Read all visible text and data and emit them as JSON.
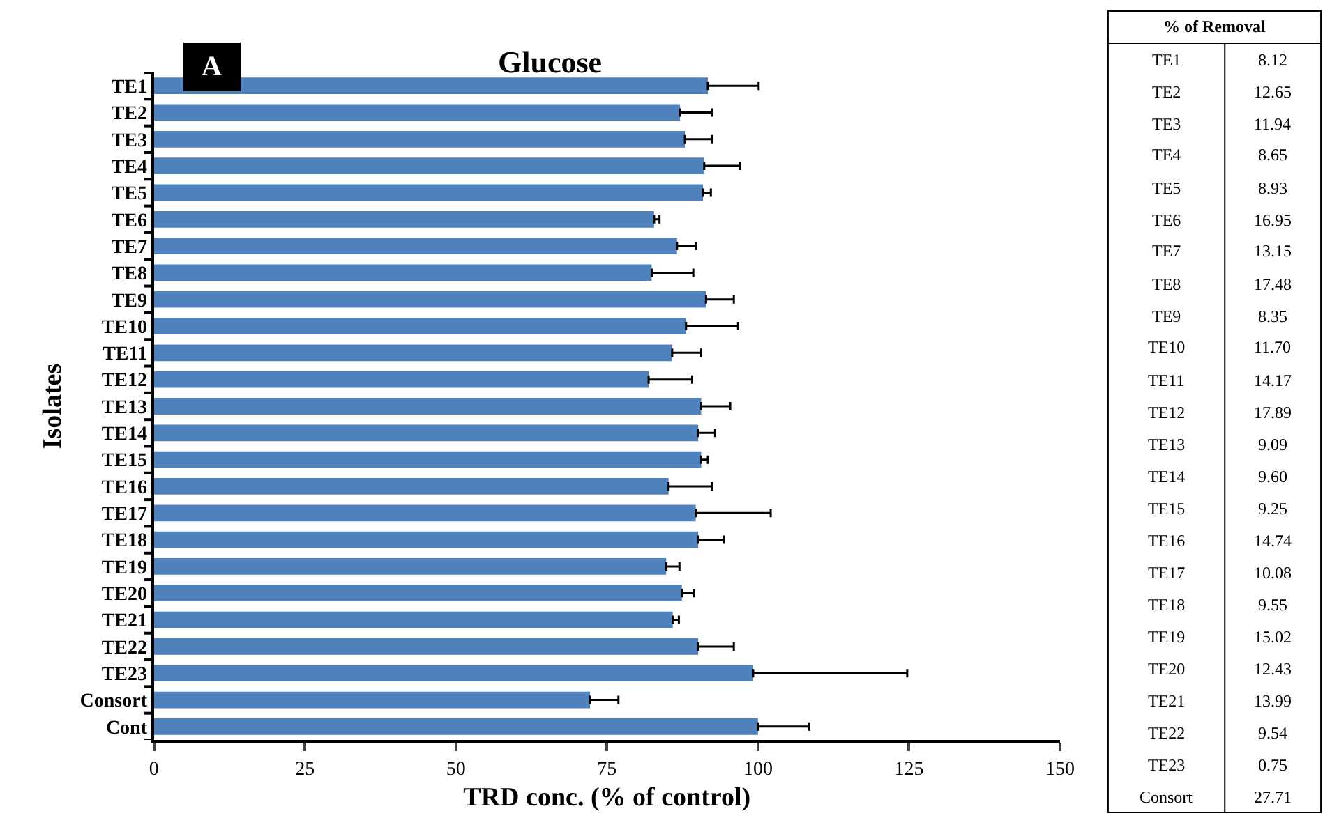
{
  "chart_data": [
    {
      "type": "bar",
      "orientation": "horizontal",
      "title": "Glucose",
      "xlabel": "TRD conc. (% of control)",
      "ylabel": "Isolates",
      "annotations": [
        "A"
      ],
      "categories": [
        "TE1",
        "TE2",
        "TE3",
        "TE4",
        "TE5",
        "TE6",
        "TE7",
        "TE8",
        "TE9",
        "TE10",
        "TE11",
        "TE12",
        "TE13",
        "TE14",
        "TE15",
        "TE16",
        "TE17",
        "TE18",
        "TE19",
        "TE20",
        "TE21",
        "TE22",
        "TE23",
        "Consort",
        "Cont"
      ],
      "values": [
        91.7,
        87.1,
        87.9,
        91.1,
        90.9,
        82.8,
        86.6,
        82.4,
        91.4,
        88.1,
        85.8,
        81.9,
        90.6,
        90.1,
        90.6,
        85.2,
        89.7,
        90.1,
        84.8,
        87.4,
        85.9,
        90.1,
        99.2,
        72.2,
        100
      ],
      "errors": [
        [
          91.7,
          100.1
        ],
        [
          87.1,
          92.4
        ],
        [
          87.9,
          92.4
        ],
        [
          91.1,
          97.0
        ],
        [
          90.9,
          92.2
        ],
        [
          82.8,
          83.7
        ],
        [
          86.6,
          89.8
        ],
        [
          82.4,
          89.3
        ],
        [
          91.4,
          96.0
        ],
        [
          88.1,
          96.7
        ],
        [
          85.8,
          90.6
        ],
        [
          81.9,
          89.1
        ],
        [
          90.6,
          95.4
        ],
        [
          90.1,
          92.9
        ],
        [
          90.6,
          91.7
        ],
        [
          85.2,
          92.4
        ],
        [
          89.7,
          102.1
        ],
        [
          90.1,
          94.4
        ],
        [
          84.8,
          87.0
        ],
        [
          87.4,
          89.4
        ],
        [
          85.9,
          86.9
        ],
        [
          90.1,
          96.0
        ],
        [
          99.2,
          124.7
        ],
        [
          72.2,
          76.9
        ],
        [
          100,
          108.5
        ]
      ],
      "color": "#4f81bd",
      "xlim": [
        0,
        150
      ],
      "xticks": [
        0,
        25,
        50,
        75,
        100,
        125,
        150
      ]
    },
    {
      "type": "other",
      "title": "% of Removal",
      "categories": [
        "TE1",
        "TE2",
        "TE3",
        "TE4",
        "TE5",
        "TE6",
        "TE7",
        "TE8",
        "TE9",
        "TE10",
        "TE11",
        "TE12",
        "TE13",
        "TE14",
        "TE15",
        "TE16",
        "TE17",
        "TE18",
        "TE19",
        "TE20",
        "TE21",
        "TE22",
        "TE23",
        "Consort"
      ],
      "values": [
        8.12,
        12.65,
        11.94,
        8.65,
        8.93,
        16.95,
        13.15,
        17.48,
        8.35,
        11.7,
        14.17,
        17.89,
        9.09,
        9.6,
        9.25,
        14.74,
        10.08,
        9.55,
        15.02,
        12.43,
        13.99,
        9.54,
        0.75,
        27.71
      ],
      "value_labels": [
        "8.12",
        "12.65",
        "11.94",
        "8.65",
        "8.93",
        "16.95",
        "13.15",
        "17.48",
        "8.35",
        "11.70",
        "14.17",
        "17.89",
        "9.09",
        "9.60",
        "9.25",
        "14.74",
        "10.08",
        "9.55",
        "15.02",
        "12.43",
        "13.99",
        "9.54",
        "0.75",
        "27.71"
      ]
    }
  ]
}
